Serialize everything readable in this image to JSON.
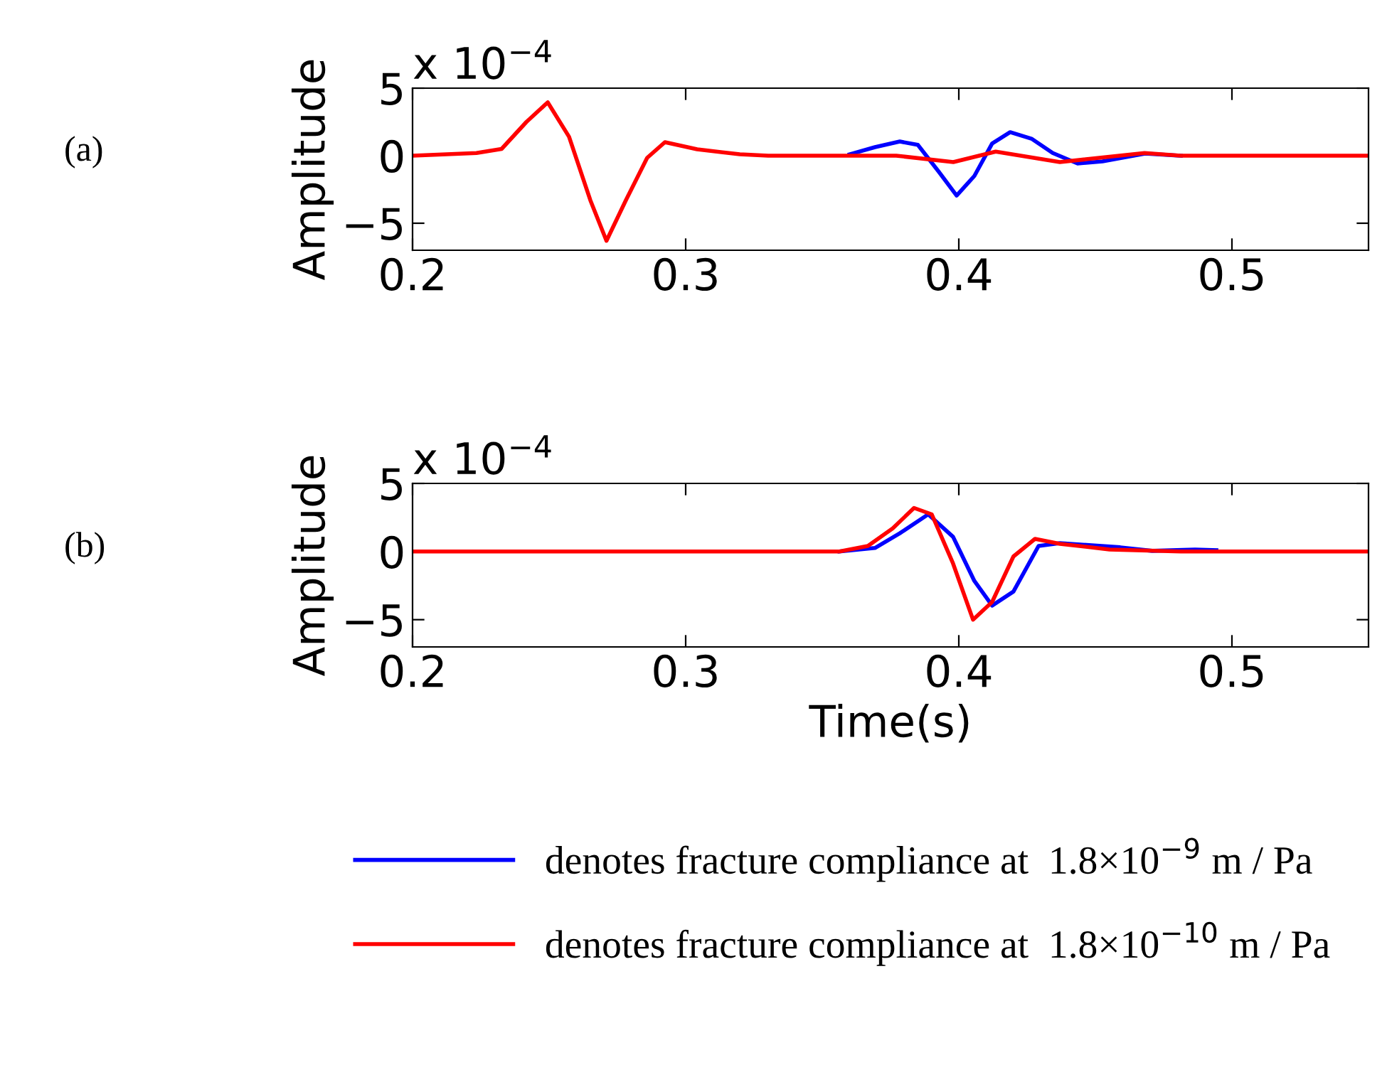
{
  "chart_data": [
    {
      "type": "line",
      "ylabel": "Amplitude",
      "annotations": [
        "(a)",
        "x 10$^{−4}$"
      ],
      "xlim": [
        0.2,
        0.55
      ],
      "xticks": [
        0.2,
        0.3,
        0.4,
        0.5
      ],
      "ylim": [
        -7,
        5
      ],
      "yticks": [
        -5,
        0,
        5
      ],
      "grid": false,
      "legend": false,
      "series": [
        {
          "color": "#0000ff",
          "x": [
            0.36,
            0.3693,
            0.3784,
            0.385,
            0.3927,
            0.3992,
            0.4057,
            0.4122,
            0.4188,
            0.4266,
            0.4344,
            0.4435,
            0.4526,
            0.4682,
            0.4813
          ],
          "values": [
            0.1,
            0.63,
            1.05,
            0.8,
            -1.2,
            -2.95,
            -1.5,
            0.9,
            1.74,
            1.26,
            0.2,
            -0.58,
            -0.42,
            0.16,
            0
          ]
        },
        {
          "color": "#ff0000",
          "x": [
            0.2,
            0.2234,
            0.2326,
            0.2417,
            0.2495,
            0.2573,
            0.2651,
            0.271,
            0.2781,
            0.2859,
            0.2924,
            0.3042,
            0.3198,
            0.3302,
            0.3771,
            0.398,
            0.4135,
            0.437,
            0.468,
            0.4813,
            0.55
          ],
          "values": [
            0,
            0.2,
            0.5,
            2.5,
            3.95,
            1.4,
            -3.3,
            -6.3,
            -3.3,
            -0.16,
            1.0,
            0.47,
            0.1,
            0,
            0,
            -0.47,
            0.3,
            -0.47,
            0.2,
            0,
            0
          ]
        }
      ]
    },
    {
      "type": "line",
      "ylabel": "Amplitude",
      "xlabel": "Time(s)",
      "annotations": [
        "(b)",
        "x 10$^{−4}$"
      ],
      "xlim": [
        0.2,
        0.55
      ],
      "xticks": [
        0.2,
        0.3,
        0.4,
        0.5
      ],
      "ylim": [
        -7,
        5
      ],
      "yticks": [
        -5,
        0,
        5
      ],
      "grid": false,
      "legend": "bottom",
      "series": [
        {
          "name": "denotes fracture compliance at  1.8×10$^{−9}$ m / Pa",
          "color": "#0000ff",
          "x": [
            0.3563,
            0.3693,
            0.3784,
            0.3888,
            0.3979,
            0.4057,
            0.4122,
            0.42,
            0.4292,
            0.437,
            0.4591,
            0.4708,
            0.4865,
            0.4943
          ],
          "values": [
            0,
            0.26,
            1.34,
            2.73,
            1.08,
            -2.16,
            -3.97,
            -2.94,
            0.41,
            0.62,
            0.31,
            0.05,
            0.15,
            0.1
          ]
        },
        {
          "name": "denotes fracture compliance at  1.8×10$^{−10}$ m / Pa",
          "color": "#ff0000",
          "x": [
            0.2,
            0.3563,
            0.3667,
            0.3758,
            0.3836,
            0.3901,
            0.3979,
            0.4052,
            0.4122,
            0.42,
            0.4279,
            0.437,
            0.4552,
            0.4813,
            0.55
          ],
          "values": [
            0,
            0,
            0.41,
            1.7,
            3.2,
            2.73,
            -0.88,
            -5.0,
            -3.7,
            -0.36,
            0.93,
            0.57,
            0.15,
            0,
            0
          ]
        }
      ]
    }
  ]
}
